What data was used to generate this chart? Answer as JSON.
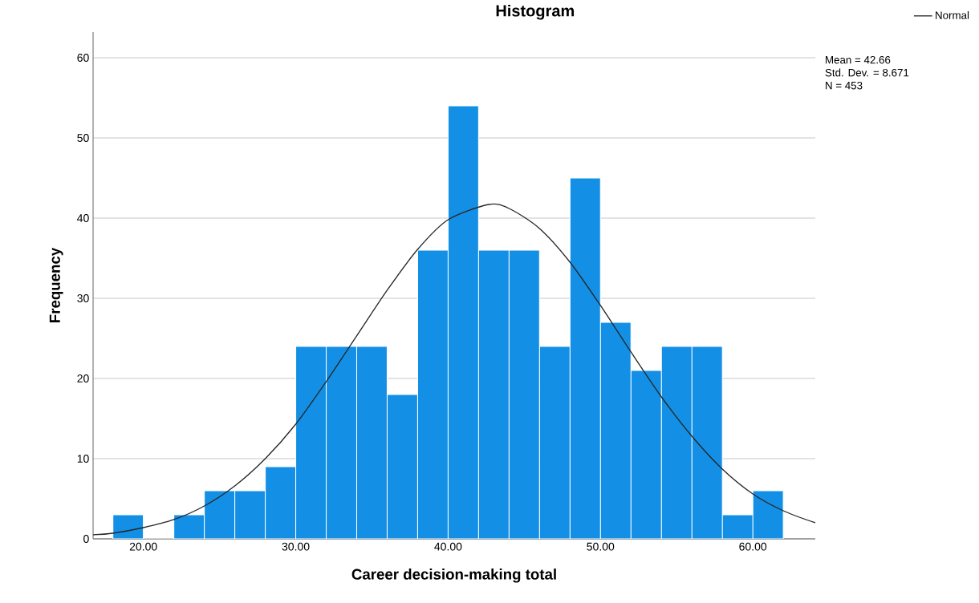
{
  "chart_data": {
    "type": "histogram",
    "title": "Histogram",
    "xlabel": "Career decision-making total",
    "ylabel": "Frequency",
    "bins": [
      18,
      20,
      22,
      24,
      26,
      28,
      30,
      32,
      34,
      36,
      38,
      40,
      42,
      44,
      46,
      48,
      50,
      52,
      54,
      56,
      58,
      60,
      62
    ],
    "values": [
      3,
      0,
      3,
      6,
      6,
      9,
      24,
      24,
      24,
      18,
      36,
      54,
      36,
      36,
      24,
      45,
      27,
      21,
      24,
      24,
      3,
      6
    ],
    "color": "#1390e6",
    "series": [
      {
        "type": "line",
        "name": "Normal",
        "color": "#262626",
        "x": [
          16.7,
          18,
          20,
          22,
          24,
          26,
          28,
          30,
          32,
          34,
          36,
          38,
          40,
          42.66,
          44,
          46,
          48,
          50,
          52,
          54,
          56,
          58,
          60,
          62,
          64.1
        ],
        "values": [
          0.5,
          0.7,
          1.4,
          2.4,
          4.1,
          6.6,
          10.0,
          14.3,
          19.6,
          25.3,
          31.0,
          36.1,
          39.8,
          41.7,
          41.2,
          38.7,
          34.5,
          29.1,
          23.3,
          17.7,
          12.8,
          8.7,
          5.6,
          3.5,
          2.0
        ]
      }
    ],
    "xlim": [
      16.7,
      64.1
    ],
    "ylim": [
      0,
      63.2
    ],
    "xticks": [
      {
        "value": 20,
        "label": "20.00"
      },
      {
        "value": 30,
        "label": "30.00"
      },
      {
        "value": 40,
        "label": "40.00"
      },
      {
        "value": 50,
        "label": "50.00"
      },
      {
        "value": 60,
        "label": "60.00"
      }
    ],
    "yticks": [
      0,
      10,
      20,
      30,
      40,
      50,
      60
    ],
    "grid": "y",
    "legend": "top right",
    "annotations": [
      "Mean = 42.66",
      "Std. Dev. = 8.671",
      "N = 453"
    ]
  }
}
